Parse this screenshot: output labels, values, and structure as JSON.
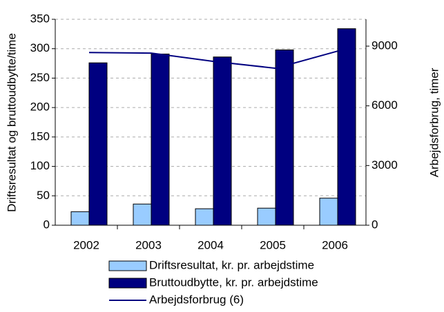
{
  "chart_data": {
    "type": "bar",
    "categories": [
      "2002",
      "2003",
      "2004",
      "2005",
      "2006"
    ],
    "ylabel": "Driftsresultat og bruttoudbytte/time",
    "y2label": "Arbejdsforbrug, timer",
    "ylim": [
      0,
      350
    ],
    "yticks": [
      0,
      50,
      100,
      150,
      200,
      250,
      300,
      350
    ],
    "y2lim": [
      0,
      10350
    ],
    "y2ticks": [
      0,
      3000,
      6000,
      9000
    ],
    "grid": true,
    "series": [
      {
        "name": "Driftsresultat, kr. pr. arbejdstime",
        "color": "#99ccff",
        "values": [
          23,
          36,
          28,
          29,
          46
        ]
      },
      {
        "name": "Bruttoudbytte, kr. pr. arbejdstime",
        "color": "#000080",
        "values": [
          276,
          291,
          286,
          298,
          334
        ]
      },
      {
        "name": "Arbejdsforbrug (6)",
        "color": "#000080",
        "type": "line",
        "axis": "y2",
        "values": [
          8680,
          8650,
          8235,
          7890,
          8750
        ]
      }
    ]
  }
}
